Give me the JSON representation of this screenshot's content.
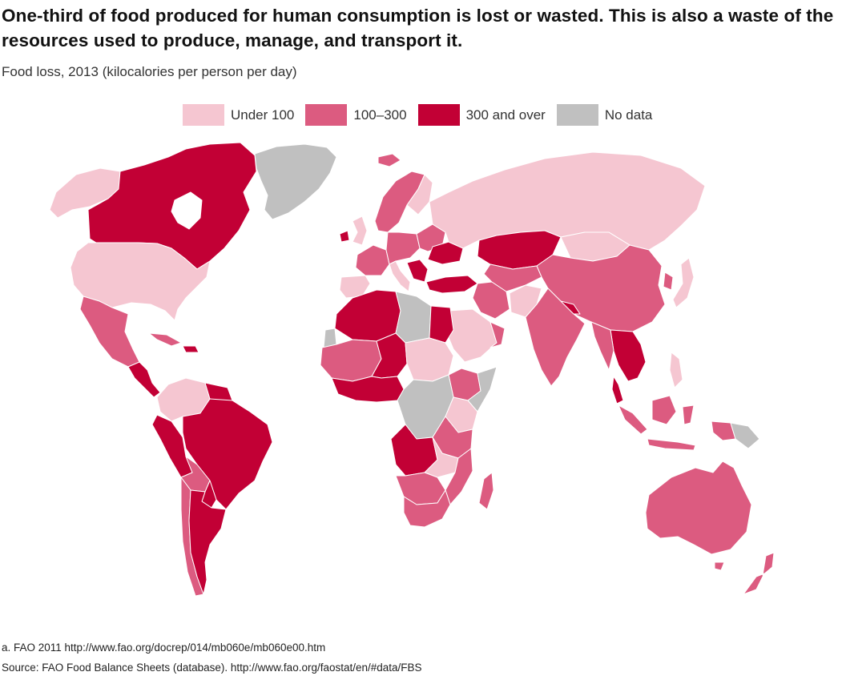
{
  "title": "One-third of food produced for human consumption is lost or wasted. This is also a waste of the resources used to produce, manage, and transport it.",
  "subtitle": "Food loss, 2013 (kilocalories per person per day)",
  "legend": [
    {
      "label": "Under 100",
      "color": "#f5c6d1"
    },
    {
      "label": "100–300",
      "color": "#dc5b80"
    },
    {
      "label": "300 and over",
      "color": "#c20035"
    },
    {
      "label": "No data",
      "color": "#c0c0c0"
    }
  ],
  "colors": {
    "background": "#ffffff",
    "border": "#ffffff"
  },
  "footnotes": {
    "note": "a. FAO 2011 http://www.fao.org/docrep/014/mb060e/mb060e00.htm",
    "source": "Source: FAO Food Balance Sheets (database). http://www.fao.org/faostat/en/#data/FBS"
  }
}
